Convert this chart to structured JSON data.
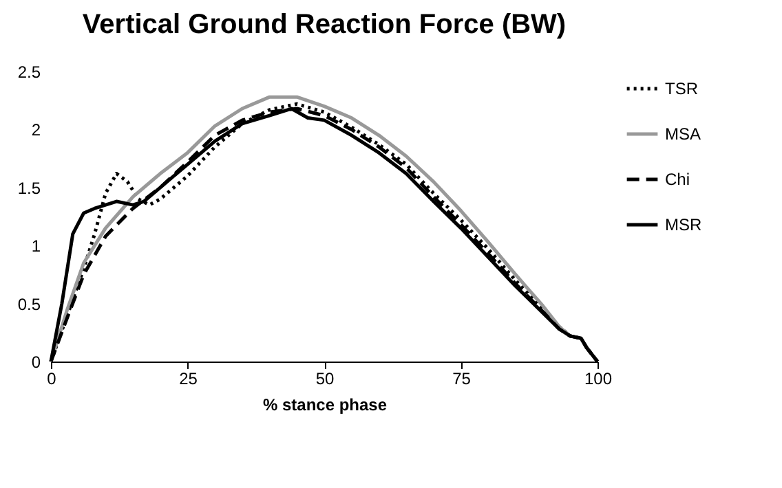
{
  "chart_data": {
    "type": "line",
    "title": "Vertical Ground Reaction Force (BW)",
    "xlabel": "% stance phase",
    "xlim": [
      0,
      100
    ],
    "xticks": [
      0,
      25,
      50,
      75,
      100
    ],
    "ylim": [
      0,
      2.5
    ],
    "yticks": [
      0,
      0.5,
      1,
      1.5,
      2,
      2.5
    ],
    "grid": false,
    "legend": "right",
    "marker": "none",
    "series": [
      {
        "name": "TSR",
        "color": "#000000",
        "line_style": "dotted",
        "x": [
          0,
          3,
          6,
          8,
          10,
          12,
          14,
          16,
          18,
          20,
          25,
          30,
          35,
          40,
          45,
          50,
          55,
          60,
          65,
          70,
          75,
          80,
          85,
          90,
          93,
          95,
          97,
          98,
          100
        ],
        "values": [
          0,
          0.4,
          0.8,
          1.1,
          1.45,
          1.62,
          1.55,
          1.4,
          1.35,
          1.4,
          1.6,
          1.85,
          2.05,
          2.17,
          2.22,
          2.15,
          2.02,
          1.87,
          1.7,
          1.45,
          1.22,
          0.97,
          0.7,
          0.45,
          0.3,
          0.22,
          0.2,
          0.12,
          0
        ]
      },
      {
        "name": "MSA",
        "color": "#999999",
        "line_style": "solid",
        "x": [
          0,
          3,
          6,
          10,
          15,
          20,
          25,
          30,
          35,
          40,
          45,
          50,
          55,
          60,
          65,
          70,
          75,
          80,
          85,
          90,
          93,
          95,
          97,
          98,
          100
        ],
        "values": [
          0,
          0.45,
          0.85,
          1.15,
          1.42,
          1.62,
          1.8,
          2.03,
          2.18,
          2.28,
          2.28,
          2.2,
          2.1,
          1.95,
          1.77,
          1.55,
          1.3,
          1.03,
          0.75,
          0.48,
          0.3,
          0.22,
          0.2,
          0.12,
          0
        ]
      },
      {
        "name": "Chi",
        "color": "#000000",
        "line_style": "dashed",
        "x": [
          0,
          3,
          6,
          10,
          15,
          20,
          25,
          30,
          35,
          40,
          45,
          50,
          55,
          60,
          65,
          70,
          75,
          80,
          85,
          90,
          93,
          95,
          97,
          98,
          100
        ],
        "values": [
          0,
          0.38,
          0.75,
          1.08,
          1.32,
          1.5,
          1.72,
          1.95,
          2.08,
          2.15,
          2.18,
          2.12,
          2.0,
          1.85,
          1.67,
          1.42,
          1.18,
          0.93,
          0.67,
          0.43,
          0.28,
          0.22,
          0.2,
          0.12,
          0
        ]
      },
      {
        "name": "MSR",
        "color": "#000000",
        "line_style": "solid",
        "x": [
          0,
          2,
          4,
          6,
          8,
          12,
          15,
          17,
          20,
          25,
          30,
          35,
          40,
          44,
          47,
          50,
          55,
          60,
          65,
          70,
          75,
          80,
          85,
          90,
          93,
          95,
          97,
          98,
          100
        ],
        "values": [
          0,
          0.5,
          1.1,
          1.28,
          1.32,
          1.38,
          1.35,
          1.38,
          1.5,
          1.7,
          1.9,
          2.05,
          2.12,
          2.18,
          2.1,
          2.08,
          1.95,
          1.8,
          1.62,
          1.38,
          1.15,
          0.9,
          0.65,
          0.42,
          0.28,
          0.22,
          0.2,
          0.12,
          0
        ]
      }
    ]
  }
}
